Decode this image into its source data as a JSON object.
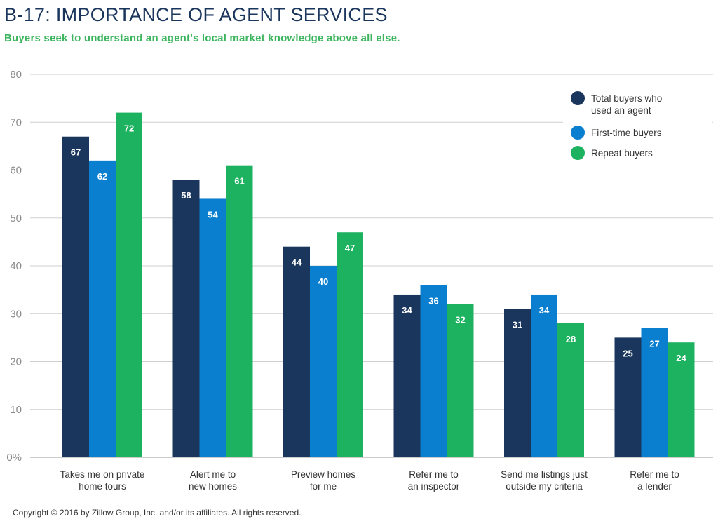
{
  "header": {
    "title": "B-17: IMPORTANCE OF AGENT SERVICES",
    "subtitle": "Buyers seek to understand an agent's local market knowledge above all else."
  },
  "footer": {
    "copyright": "Copyright © 2016 by Zillow Group, Inc. and/or its affiliates. All rights reserved."
  },
  "chart_data": {
    "type": "bar",
    "title": "B-17: IMPORTANCE OF AGENT SERVICES",
    "subtitle": "Buyers seek to understand an agent's local market knowledge above all else.",
    "xlabel": "",
    "ylabel": "",
    "ylim": [
      0,
      80
    ],
    "yticks": [
      0,
      10,
      20,
      30,
      40,
      50,
      60,
      70,
      80
    ],
    "ytick_labels": [
      "0%",
      "10",
      "20",
      "30",
      "40",
      "50",
      "60",
      "70",
      "80"
    ],
    "grid": true,
    "legend_position": "top-right",
    "categories": [
      [
        "Takes me on private",
        "home tours"
      ],
      [
        "Alert me to",
        "new homes"
      ],
      [
        "Preview homes",
        "for me"
      ],
      [
        "Refer me to",
        "an inspector"
      ],
      [
        "Send me listings just",
        "outside my criteria"
      ],
      [
        "Refer me to",
        "a lender"
      ]
    ],
    "series": [
      {
        "name": [
          "Total buyers who",
          "used an agent"
        ],
        "color": "#1b365d",
        "values": [
          67,
          58,
          44,
          34,
          31,
          25
        ]
      },
      {
        "name": [
          "First-time buyers"
        ],
        "color": "#0a7fcf",
        "values": [
          62,
          54,
          40,
          36,
          34,
          27
        ]
      },
      {
        "name": [
          "Repeat buyers"
        ],
        "color": "#1db260",
        "values": [
          72,
          61,
          47,
          32,
          28,
          24
        ]
      }
    ]
  }
}
